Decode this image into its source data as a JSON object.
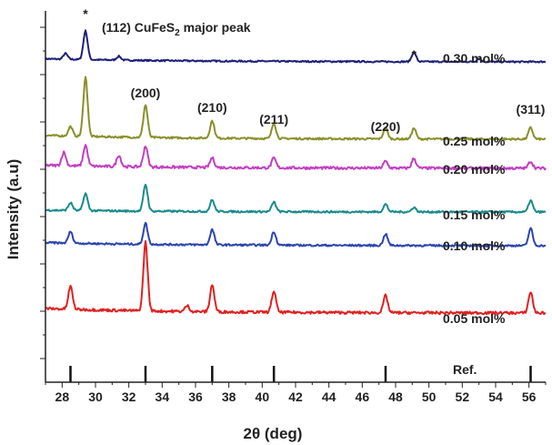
{
  "chart_data": {
    "type": "line",
    "title": "",
    "xlabel": "2θ (deg)",
    "ylabel": "Intensity (a.u)",
    "xlim": [
      27,
      57
    ],
    "x_ticks": [
      28,
      30,
      32,
      34,
      36,
      38,
      40,
      42,
      44,
      46,
      48,
      50,
      52,
      54,
      56
    ],
    "grid": false,
    "y_tick_labels_shown": false,
    "reference_lines": [
      28.5,
      33.0,
      37.0,
      40.7,
      47.4,
      56.1
    ],
    "reference_label": "Ref.",
    "peaks_hkl": [
      {
        "label": "(200)",
        "x": 33.0
      },
      {
        "label": "(210)",
        "x": 37.0
      },
      {
        "label": "(211)",
        "x": 40.7
      },
      {
        "label": "(220)",
        "x": 47.4
      },
      {
        "label": "(311)",
        "x": 56.1
      }
    ],
    "star_marks": [
      29.4,
      49.1
    ],
    "major_peak_label": {
      "prefix": "(112) CuFeS",
      "sub": "2",
      "suffix": " major peak"
    },
    "series": [
      {
        "name": "0.30 mol%",
        "color": "#1f1f7a",
        "baseline": 0.0,
        "noise": 0.02,
        "slope": 0.08,
        "peaks": [
          [
            28.2,
            0.15
          ],
          [
            29.4,
            0.75
          ],
          [
            31.4,
            0.1
          ],
          [
            49.1,
            0.25
          ],
          [
            53.0,
            0.08
          ]
        ]
      },
      {
        "name": "0.25 mol%",
        "color": "#8a8f2b",
        "baseline": 0.0,
        "noise": 0.025,
        "slope": 0.1,
        "peaks": [
          [
            28.5,
            0.25
          ],
          [
            29.4,
            1.55
          ],
          [
            33.0,
            0.85
          ],
          [
            37.0,
            0.45
          ],
          [
            40.7,
            0.4
          ],
          [
            47.4,
            0.3
          ],
          [
            49.1,
            0.28
          ],
          [
            56.1,
            0.3
          ]
        ]
      },
      {
        "name": "0.20 mol%",
        "color": "#c23fc2",
        "baseline": 0.0,
        "noise": 0.035,
        "slope": 0.08,
        "peaks": [
          [
            28.1,
            0.35
          ],
          [
            29.4,
            0.55
          ],
          [
            31.4,
            0.3
          ],
          [
            33.0,
            0.55
          ],
          [
            37.0,
            0.25
          ],
          [
            40.7,
            0.25
          ],
          [
            47.4,
            0.18
          ],
          [
            49.1,
            0.25
          ],
          [
            56.1,
            0.18
          ]
        ]
      },
      {
        "name": "0.15 mol%",
        "color": "#1a8b8b",
        "baseline": 0.0,
        "noise": 0.025,
        "slope": 0.05,
        "peaks": [
          [
            28.5,
            0.2
          ],
          [
            29.4,
            0.45
          ],
          [
            33.0,
            0.7
          ],
          [
            37.0,
            0.3
          ],
          [
            40.7,
            0.25
          ],
          [
            47.4,
            0.2
          ],
          [
            49.1,
            0.12
          ],
          [
            56.1,
            0.3
          ]
        ]
      },
      {
        "name": "0.10 mol%",
        "color": "#2c45b0",
        "baseline": 0.0,
        "noise": 0.025,
        "slope": 0.08,
        "peaks": [
          [
            28.5,
            0.3
          ],
          [
            33.0,
            0.55
          ],
          [
            37.0,
            0.4
          ],
          [
            40.7,
            0.35
          ],
          [
            47.4,
            0.3
          ],
          [
            56.1,
            0.45
          ]
        ]
      },
      {
        "name": "0.05 mol%",
        "color": "#e02020",
        "baseline": 0.0,
        "noise": 0.035,
        "slope": 0.12,
        "peaks": [
          [
            28.5,
            0.6
          ],
          [
            33.0,
            1.8
          ],
          [
            35.5,
            0.15
          ],
          [
            37.0,
            0.7
          ],
          [
            40.7,
            0.55
          ],
          [
            47.4,
            0.45
          ],
          [
            56.1,
            0.55
          ]
        ]
      }
    ]
  }
}
